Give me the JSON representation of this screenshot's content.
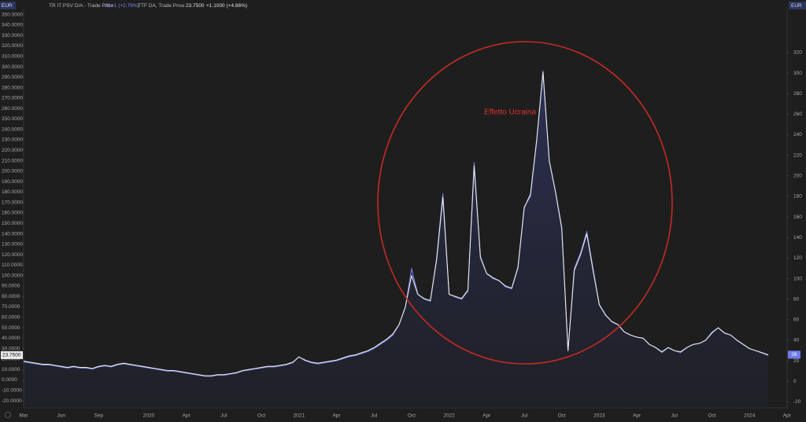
{
  "currency": "EUR",
  "chart_data": {
    "type": "line",
    "annotation": "Effetto Ucraina",
    "categories": [
      "Mar",
      null,
      null,
      null,
      null,
      null,
      "Jun",
      null,
      null,
      null,
      null,
      null,
      "Sep",
      null,
      null,
      null,
      null,
      null,
      null,
      null,
      "2020",
      null,
      null,
      null,
      null,
      null,
      "Apr",
      null,
      null,
      null,
      null,
      null,
      "Jul",
      null,
      null,
      null,
      null,
      null,
      "Oct",
      null,
      null,
      null,
      null,
      null,
      "2021",
      null,
      null,
      null,
      null,
      null,
      "Apr",
      null,
      null,
      null,
      null,
      null,
      "Jul",
      null,
      null,
      null,
      null,
      null,
      "Oct",
      null,
      null,
      null,
      null,
      null,
      "2022",
      null,
      null,
      null,
      null,
      null,
      "Apr",
      null,
      null,
      null,
      null,
      null,
      "Jul",
      null,
      null,
      null,
      null,
      null,
      "Oct",
      null,
      null,
      null,
      null,
      null,
      "2023",
      null,
      null,
      null,
      null,
      null,
      "Apr",
      null,
      null,
      null,
      null,
      null,
      "Jul",
      null,
      null,
      null,
      null,
      null,
      "Oct",
      null,
      null,
      null,
      null,
      null,
      "2024",
      null,
      null,
      null,
      null,
      null,
      "Apr"
    ],
    "series": [
      {
        "name": "TR IT PSV D/A - Trade Price",
        "color": "#6d7be8",
        "axis": "y2",
        "change_label": "+1 (+2.79%)",
        "values": [
          19,
          18,
          17,
          16,
          16,
          15,
          14,
          13,
          14,
          13,
          13,
          12,
          14,
          15,
          14,
          16,
          17,
          16,
          15,
          14,
          13,
          12,
          11,
          10,
          10,
          9,
          8,
          7,
          6,
          5,
          5,
          6,
          6,
          7,
          8,
          10,
          11,
          12,
          13,
          14,
          14,
          15,
          16,
          18,
          24,
          20,
          18,
          17,
          18,
          19,
          20,
          22,
          24,
          25,
          27,
          29,
          32,
          36,
          40,
          45,
          55,
          72,
          110,
          85,
          80,
          78,
          120,
          183,
          85,
          82,
          80,
          88,
          213,
          120,
          105,
          100,
          98,
          92,
          90,
          110,
          170,
          180,
          235,
          302,
          215,
          185,
          150,
          30,
          110,
          125,
          146,
          110,
          75,
          65,
          58,
          55,
          48,
          45,
          43,
          42,
          36,
          33,
          28,
          33,
          30,
          28,
          33,
          36,
          37,
          40,
          48,
          52,
          47,
          45,
          40,
          36,
          32,
          30,
          28,
          26,
          null,
          null,
          null
        ]
      },
      {
        "name": "TTF DA, Trade Price",
        "color": "#e9e9e9",
        "axis": "y",
        "last_label": "23.7500",
        "change_label": "+1.1000 (+4.86%)",
        "values": [
          18,
          17,
          16,
          15,
          15,
          14,
          13,
          12,
          13,
          12,
          12,
          11,
          13,
          14,
          13,
          15,
          16,
          15,
          14,
          13,
          12,
          11,
          10,
          9,
          9,
          8,
          7,
          6,
          5,
          4,
          4,
          5,
          5,
          6,
          7,
          9,
          10,
          11,
          12,
          13,
          13,
          14,
          15,
          17,
          22,
          19,
          17,
          16,
          17,
          18,
          19,
          21,
          23,
          24,
          26,
          28,
          31,
          35,
          39,
          44,
          53,
          70,
          100,
          82,
          78,
          76,
          115,
          175,
          82,
          80,
          78,
          86,
          205,
          118,
          102,
          98,
          95,
          90,
          88,
          108,
          165,
          178,
          230,
          295,
          210,
          180,
          145,
          28,
          105,
          120,
          140,
          105,
          72,
          62,
          56,
          53,
          46,
          43,
          41,
          40,
          34,
          31,
          27,
          31,
          28,
          27,
          31,
          34,
          35,
          38,
          45,
          50,
          45,
          43,
          38,
          34,
          30,
          28,
          26,
          23.75,
          null,
          null,
          null
        ]
      }
    ],
    "ylim": [
      -26,
      355
    ],
    "yticks": [
      {
        "value": -20,
        "label": "-20.0000"
      },
      {
        "value": -10,
        "label": "-10.0000"
      },
      {
        "value": 0,
        "label": "0.0000"
      },
      {
        "value": 10,
        "label": "10.0000"
      },
      {
        "value": 20,
        "label": "20.0000"
      },
      {
        "value": 30,
        "label": "30.0000"
      },
      {
        "value": 40,
        "label": "40.0000"
      },
      {
        "value": 50,
        "label": "50.0000"
      },
      {
        "value": 60,
        "label": "60.0000"
      },
      {
        "value": 70,
        "label": "70.0000"
      },
      {
        "value": 80,
        "label": "80.0000"
      },
      {
        "value": 90,
        "label": "90.0000"
      },
      {
        "value": 100,
        "label": "100.0000"
      },
      {
        "value": 110,
        "label": "110.0000"
      },
      {
        "value": 120,
        "label": "120.0000"
      },
      {
        "value": 130,
        "label": "130.0000"
      },
      {
        "value": 140,
        "label": "140.0000"
      },
      {
        "value": 150,
        "label": "150.0000"
      },
      {
        "value": 160,
        "label": "160.0000"
      },
      {
        "value": 170,
        "label": "170.0000"
      },
      {
        "value": 180,
        "label": "180.0000"
      },
      {
        "value": 190,
        "label": "190.0000"
      },
      {
        "value": 200,
        "label": "200.0000"
      },
      {
        "value": 210,
        "label": "210.0000"
      },
      {
        "value": 220,
        "label": "220.0000"
      },
      {
        "value": 230,
        "label": "230.0000"
      },
      {
        "value": 240,
        "label": "240.0000"
      },
      {
        "value": 250,
        "label": "250.0000"
      },
      {
        "value": 260,
        "label": "260.0000"
      },
      {
        "value": 270,
        "label": "270.0000"
      },
      {
        "value": 280,
        "label": "280.0000"
      },
      {
        "value": 290,
        "label": "290.0000"
      },
      {
        "value": 300,
        "label": "300.0000"
      },
      {
        "value": 310,
        "label": "310.0000"
      },
      {
        "value": 320,
        "label": "320.0000"
      },
      {
        "value": 330,
        "label": "330.0000"
      },
      {
        "value": 340,
        "label": "340.0000"
      },
      {
        "value": 350,
        "label": "350.0000"
      }
    ],
    "y2lim": [
      -25,
      362
    ],
    "y2ticks": [
      -20,
      0,
      20,
      40,
      60,
      80,
      100,
      120,
      140,
      160,
      180,
      200,
      220,
      240,
      260,
      280,
      300,
      320
    ],
    "grid": false
  }
}
